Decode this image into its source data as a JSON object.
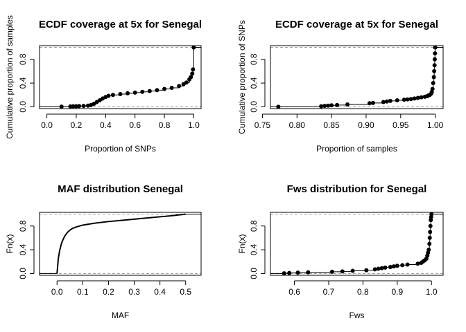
{
  "chart_data": [
    {
      "type": "scatter",
      "subtype": "ecdf",
      "title": "ECDF coverage at 5x for Senegal",
      "xlabel": "Proportion of SNPs",
      "ylabel": "Cumulative proportion of samples",
      "xlim": [
        -0.05,
        1.05
      ],
      "ylim": [
        -0.03,
        1.03
      ],
      "xticks": [
        0.0,
        0.2,
        0.4,
        0.6,
        0.8,
        1.0
      ],
      "xtick_labels": [
        "0.0",
        "0.2",
        "0.4",
        "0.6",
        "0.8",
        "1.0"
      ],
      "yticks": [
        0.0,
        0.4,
        0.8
      ],
      "ytick_labels": [
        "0.0",
        "0.4",
        "0.8"
      ],
      "ref_lines_y": [
        0,
        1
      ],
      "points": [
        [
          0.1,
          0.003
        ],
        [
          0.16,
          0.006
        ],
        [
          0.18,
          0.009
        ],
        [
          0.2,
          0.01
        ],
        [
          0.22,
          0.012
        ],
        [
          0.25,
          0.015
        ],
        [
          0.28,
          0.02
        ],
        [
          0.3,
          0.03
        ],
        [
          0.32,
          0.05
        ],
        [
          0.34,
          0.08
        ],
        [
          0.36,
          0.11
        ],
        [
          0.38,
          0.14
        ],
        [
          0.4,
          0.165
        ],
        [
          0.42,
          0.185
        ],
        [
          0.45,
          0.2
        ],
        [
          0.5,
          0.215
        ],
        [
          0.55,
          0.228
        ],
        [
          0.6,
          0.24
        ],
        [
          0.65,
          0.252
        ],
        [
          0.7,
          0.265
        ],
        [
          0.75,
          0.28
        ],
        [
          0.8,
          0.3
        ],
        [
          0.85,
          0.32
        ],
        [
          0.9,
          0.35
        ],
        [
          0.93,
          0.38
        ],
        [
          0.95,
          0.41
        ],
        [
          0.97,
          0.46
        ],
        [
          0.98,
          0.5
        ],
        [
          0.99,
          0.56
        ],
        [
          0.995,
          0.63
        ],
        [
          1.0,
          1.0
        ]
      ]
    },
    {
      "type": "scatter",
      "subtype": "ecdf",
      "title": "ECDF coverage at 5x for Senegal",
      "xlabel": "Proportion of samples",
      "ylabel": "Cumulative proportion of SNPs",
      "xlim": [
        0.7616,
        1.0114
      ],
      "ylim": [
        -0.03,
        1.03
      ],
      "xticks": [
        0.75,
        0.8,
        0.85,
        0.9,
        0.95,
        1.0
      ],
      "xtick_labels": [
        "0.75",
        "0.80",
        "0.85",
        "0.90",
        "0.95",
        "1.00"
      ],
      "yticks": [
        0.0,
        0.4,
        0.8
      ],
      "ytick_labels": [
        "0.0",
        "0.4",
        "0.8"
      ],
      "ref_lines_y": [
        0,
        1
      ],
      "points": [
        [
          0.773,
          0.001
        ],
        [
          0.835,
          0.01
        ],
        [
          0.84,
          0.015
        ],
        [
          0.845,
          0.02
        ],
        [
          0.85,
          0.025
        ],
        [
          0.858,
          0.03
        ],
        [
          0.873,
          0.04
        ],
        [
          0.905,
          0.06
        ],
        [
          0.91,
          0.065
        ],
        [
          0.925,
          0.08
        ],
        [
          0.93,
          0.09
        ],
        [
          0.935,
          0.1
        ],
        [
          0.945,
          0.11
        ],
        [
          0.955,
          0.12
        ],
        [
          0.96,
          0.125
        ],
        [
          0.965,
          0.13
        ],
        [
          0.97,
          0.14
        ],
        [
          0.975,
          0.15
        ],
        [
          0.98,
          0.16
        ],
        [
          0.985,
          0.17
        ],
        [
          0.988,
          0.18
        ],
        [
          0.99,
          0.19
        ],
        [
          0.992,
          0.2
        ],
        [
          0.994,
          0.22
        ],
        [
          0.995,
          0.25
        ],
        [
          0.996,
          0.3
        ],
        [
          0.997,
          0.4
        ],
        [
          0.998,
          0.5
        ],
        [
          0.9985,
          0.6
        ],
        [
          0.999,
          0.7
        ],
        [
          0.9993,
          0.8
        ],
        [
          0.9996,
          0.9
        ],
        [
          1.0,
          1.0
        ]
      ]
    },
    {
      "type": "line",
      "subtype": "ecdf",
      "title": "MAF distribution Senegal",
      "xlabel": "MAF",
      "ylabel": "Fn(x)",
      "xlim": [
        -0.068,
        0.56
      ],
      "ylim": [
        -0.03,
        1.03
      ],
      "xticks": [
        0.0,
        0.1,
        0.2,
        0.3,
        0.4,
        0.5
      ],
      "xtick_labels": [
        "0.0",
        "0.1",
        "0.2",
        "0.3",
        "0.4",
        "0.5"
      ],
      "yticks": [
        0.0,
        0.4,
        0.8
      ],
      "ytick_labels": [
        "0.0",
        "0.4",
        "0.8"
      ],
      "ref_lines_y": [
        0,
        1
      ],
      "points": [
        [
          0.0,
          0.0
        ],
        [
          0.005,
          0.25
        ],
        [
          0.01,
          0.38
        ],
        [
          0.015,
          0.47
        ],
        [
          0.02,
          0.54
        ],
        [
          0.03,
          0.63
        ],
        [
          0.04,
          0.69
        ],
        [
          0.05,
          0.73
        ],
        [
          0.06,
          0.76
        ],
        [
          0.08,
          0.79
        ],
        [
          0.1,
          0.815
        ],
        [
          0.15,
          0.85
        ],
        [
          0.2,
          0.875
        ],
        [
          0.25,
          0.895
        ],
        [
          0.3,
          0.915
        ],
        [
          0.35,
          0.935
        ],
        [
          0.4,
          0.955
        ],
        [
          0.45,
          0.975
        ],
        [
          0.5,
          1.0
        ]
      ]
    },
    {
      "type": "scatter",
      "subtype": "ecdf",
      "title": "Fws distribution for Senegal",
      "xlabel": "Fws",
      "ylabel": "Fn(x)",
      "xlim": [
        0.53,
        1.034
      ],
      "ylim": [
        -0.03,
        1.03
      ],
      "xticks": [
        0.6,
        0.7,
        0.8,
        0.9,
        1.0
      ],
      "xtick_labels": [
        "0.6",
        "0.7",
        "0.8",
        "0.9",
        "1.0"
      ],
      "yticks": [
        0.0,
        0.4,
        0.8
      ],
      "ytick_labels": [
        "0.0",
        "0.4",
        "0.8"
      ],
      "ref_lines_y": [
        0,
        1
      ],
      "points": [
        [
          0.57,
          0.003
        ],
        [
          0.585,
          0.01
        ],
        [
          0.61,
          0.015
        ],
        [
          0.64,
          0.02
        ],
        [
          0.71,
          0.03
        ],
        [
          0.74,
          0.035
        ],
        [
          0.77,
          0.045
        ],
        [
          0.81,
          0.055
        ],
        [
          0.835,
          0.07
        ],
        [
          0.845,
          0.08
        ],
        [
          0.855,
          0.09
        ],
        [
          0.865,
          0.1
        ],
        [
          0.88,
          0.11
        ],
        [
          0.89,
          0.12
        ],
        [
          0.9,
          0.13
        ],
        [
          0.915,
          0.14
        ],
        [
          0.93,
          0.15
        ],
        [
          0.96,
          0.165
        ],
        [
          0.97,
          0.18
        ],
        [
          0.975,
          0.2
        ],
        [
          0.98,
          0.22
        ],
        [
          0.985,
          0.25
        ],
        [
          0.988,
          0.3
        ],
        [
          0.99,
          0.35
        ],
        [
          0.992,
          0.4
        ],
        [
          0.994,
          0.5
        ],
        [
          0.995,
          0.6
        ],
        [
          0.996,
          0.7
        ],
        [
          0.997,
          0.8
        ],
        [
          0.998,
          0.9
        ],
        [
          0.999,
          0.95
        ],
        [
          1.0,
          1.0
        ]
      ]
    }
  ]
}
